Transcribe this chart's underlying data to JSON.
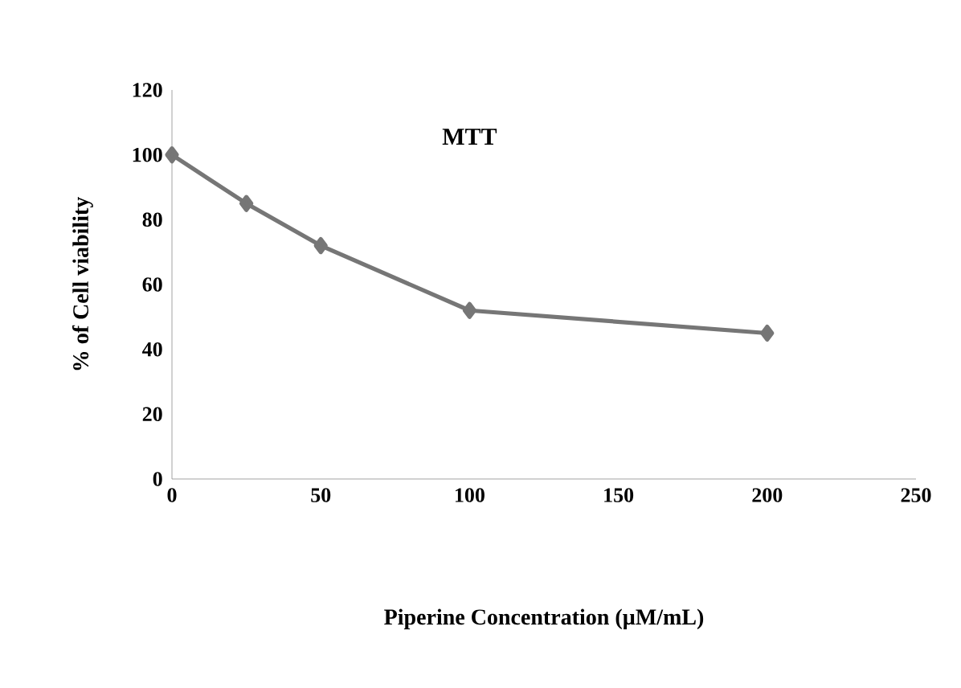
{
  "chart_data": {
    "type": "line",
    "title": "MTT",
    "xlabel": "Piperine Concentration (µM/mL)",
    "ylabel": "% of Cell viability",
    "x": [
      0,
      25,
      50,
      100,
      200
    ],
    "series": [
      {
        "color": "#767676",
        "values": [
          100,
          85,
          72,
          52,
          45
        ]
      }
    ],
    "xlim": [
      0,
      250
    ],
    "xticks": [
      0,
      50,
      100,
      150,
      200,
      250
    ],
    "ylim": [
      0,
      120
    ],
    "yticks": [
      0,
      20,
      40,
      60,
      80,
      100,
      120
    ],
    "marker": "diamond",
    "line_style": "solid"
  }
}
